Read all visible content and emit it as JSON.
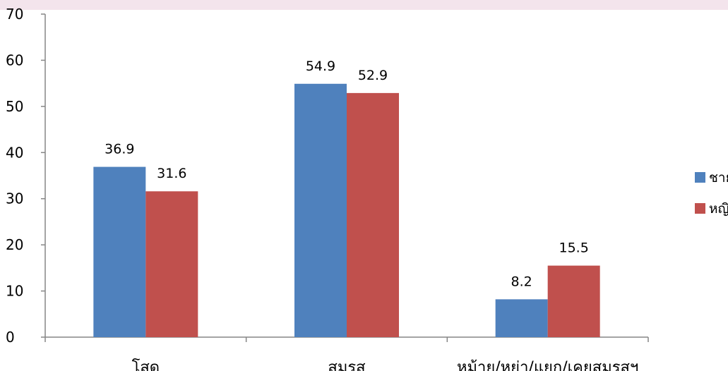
{
  "chart_data": {
    "type": "bar",
    "categories": [
      "โสด",
      "สมรส",
      "หม้าย/หย่า/แยก/เคยสมรสฯ"
    ],
    "series": [
      {
        "name": "ชาย",
        "values": [
          36.9,
          54.9,
          8.2
        ],
        "color": "#4f81bd"
      },
      {
        "name": "หญิง",
        "values": [
          31.6,
          52.9,
          15.5
        ],
        "color": "#c0504d"
      }
    ],
    "ylim": [
      0,
      70
    ],
    "yticks": [
      0,
      10,
      20,
      30,
      40,
      50,
      60,
      70
    ],
    "data_labels": true,
    "legend_position": "right",
    "grid": false
  }
}
